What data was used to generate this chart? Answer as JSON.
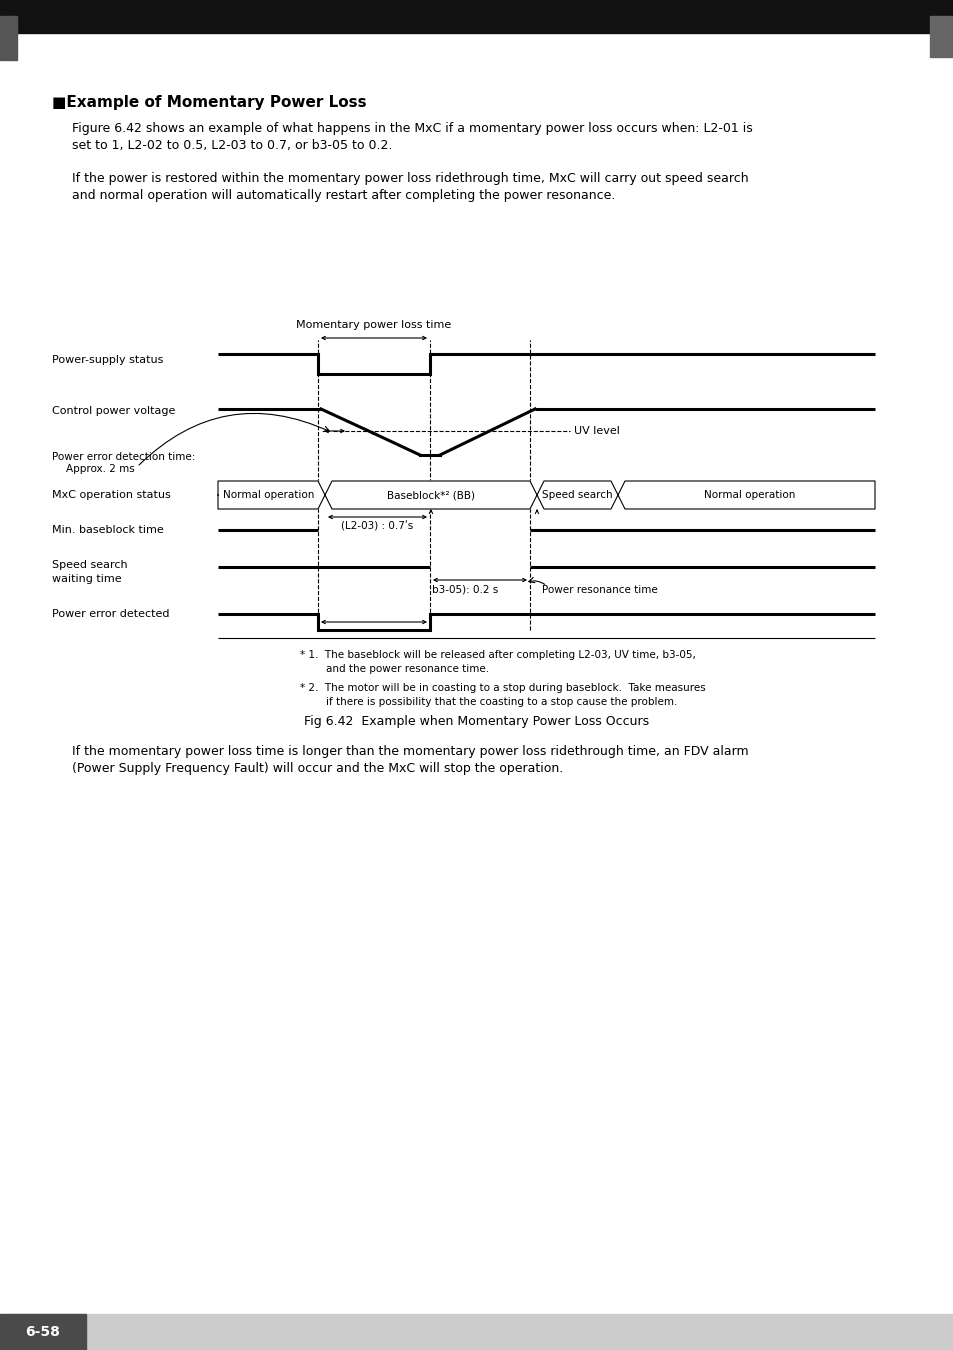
{
  "title_section": "■Example of Momentary Power Loss",
  "para1_line1": "Figure 6.42 shows an example of what happens in the MxC if a momentary power loss occurs when: L2-01 is",
  "para1_line2": "set to 1, L2-02 to 0.5, L2-03 to 0.7, or b3-05 to 0.2.",
  "para2_line1": "If the power is restored within the momentary power loss ridethrough time, MxC will carry out speed search",
  "para2_line2": "and normal operation will automatically restart after completing the power resonance.",
  "fig_caption": "Fig 6.42  Example when Momentary Power Loss Occurs",
  "para3_line1": "If the momentary power loss time is longer than the momentary power loss ridethrough time, an FDV alarm",
  "para3_line2": "(Power Supply Frequency Fault) will occur and the MxC will stop the operation.",
  "footnote1_line1": "* 1.  The baseblock will be released after completing L2-03, UV time, b3-05,",
  "footnote1_line2": "        and the power resonance time.",
  "footnote2_line1": "* 2.  The motor will be in coasting to a stop during baseblock.  Take measures",
  "footnote2_line2": "        if there is possibility that the coasting to a stop cause the problem.",
  "bg_color": "#ffffff",
  "text_color": "#000000",
  "header_bg": "#111111",
  "page_label": "6-58",
  "lw_thick": 2.2,
  "lw_thin": 0.8,
  "lw_dash": 0.8
}
